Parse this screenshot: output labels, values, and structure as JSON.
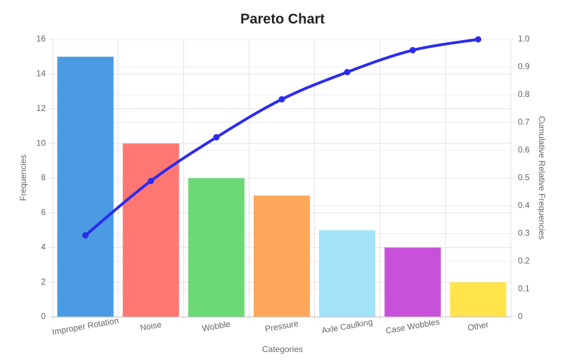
{
  "chart_data": {
    "type": "pareto",
    "title": "Pareto Chart",
    "x_label": "Categories",
    "y_label": "Frequencies",
    "y2_label": "Cumulative Relative Frequencies",
    "categories": [
      "Improper Rotation",
      "Noise",
      "Wobble",
      "Pressure",
      "Axle Caulking",
      "Case Wobbles",
      "Other"
    ],
    "series": [
      {
        "type": "bar",
        "colors": [
          "#4a9be3",
          "#ff7773",
          "#6bd975",
          "#ffa75a",
          "#a3e4fa",
          "#c752d9",
          "#ffe44d"
        ],
        "values": [
          15,
          10,
          8,
          7,
          5,
          4,
          2
        ]
      },
      {
        "type": "line",
        "axis": "y2",
        "color": "#2b2bef",
        "values": [
          0.294,
          0.49,
          0.647,
          0.784,
          0.882,
          0.961,
          1.0
        ]
      }
    ],
    "ylim": [
      0,
      16
    ],
    "yticks": [
      0,
      2,
      4,
      6,
      8,
      10,
      12,
      14,
      16
    ],
    "y2lim": [
      0,
      1
    ],
    "y2ticks": [
      0,
      0.1,
      0.2,
      0.3,
      0.4,
      0.5,
      0.6,
      0.7,
      0.8,
      0.9,
      {
        "value": 1,
        "label": "1.0"
      }
    ],
    "grid": true
  }
}
